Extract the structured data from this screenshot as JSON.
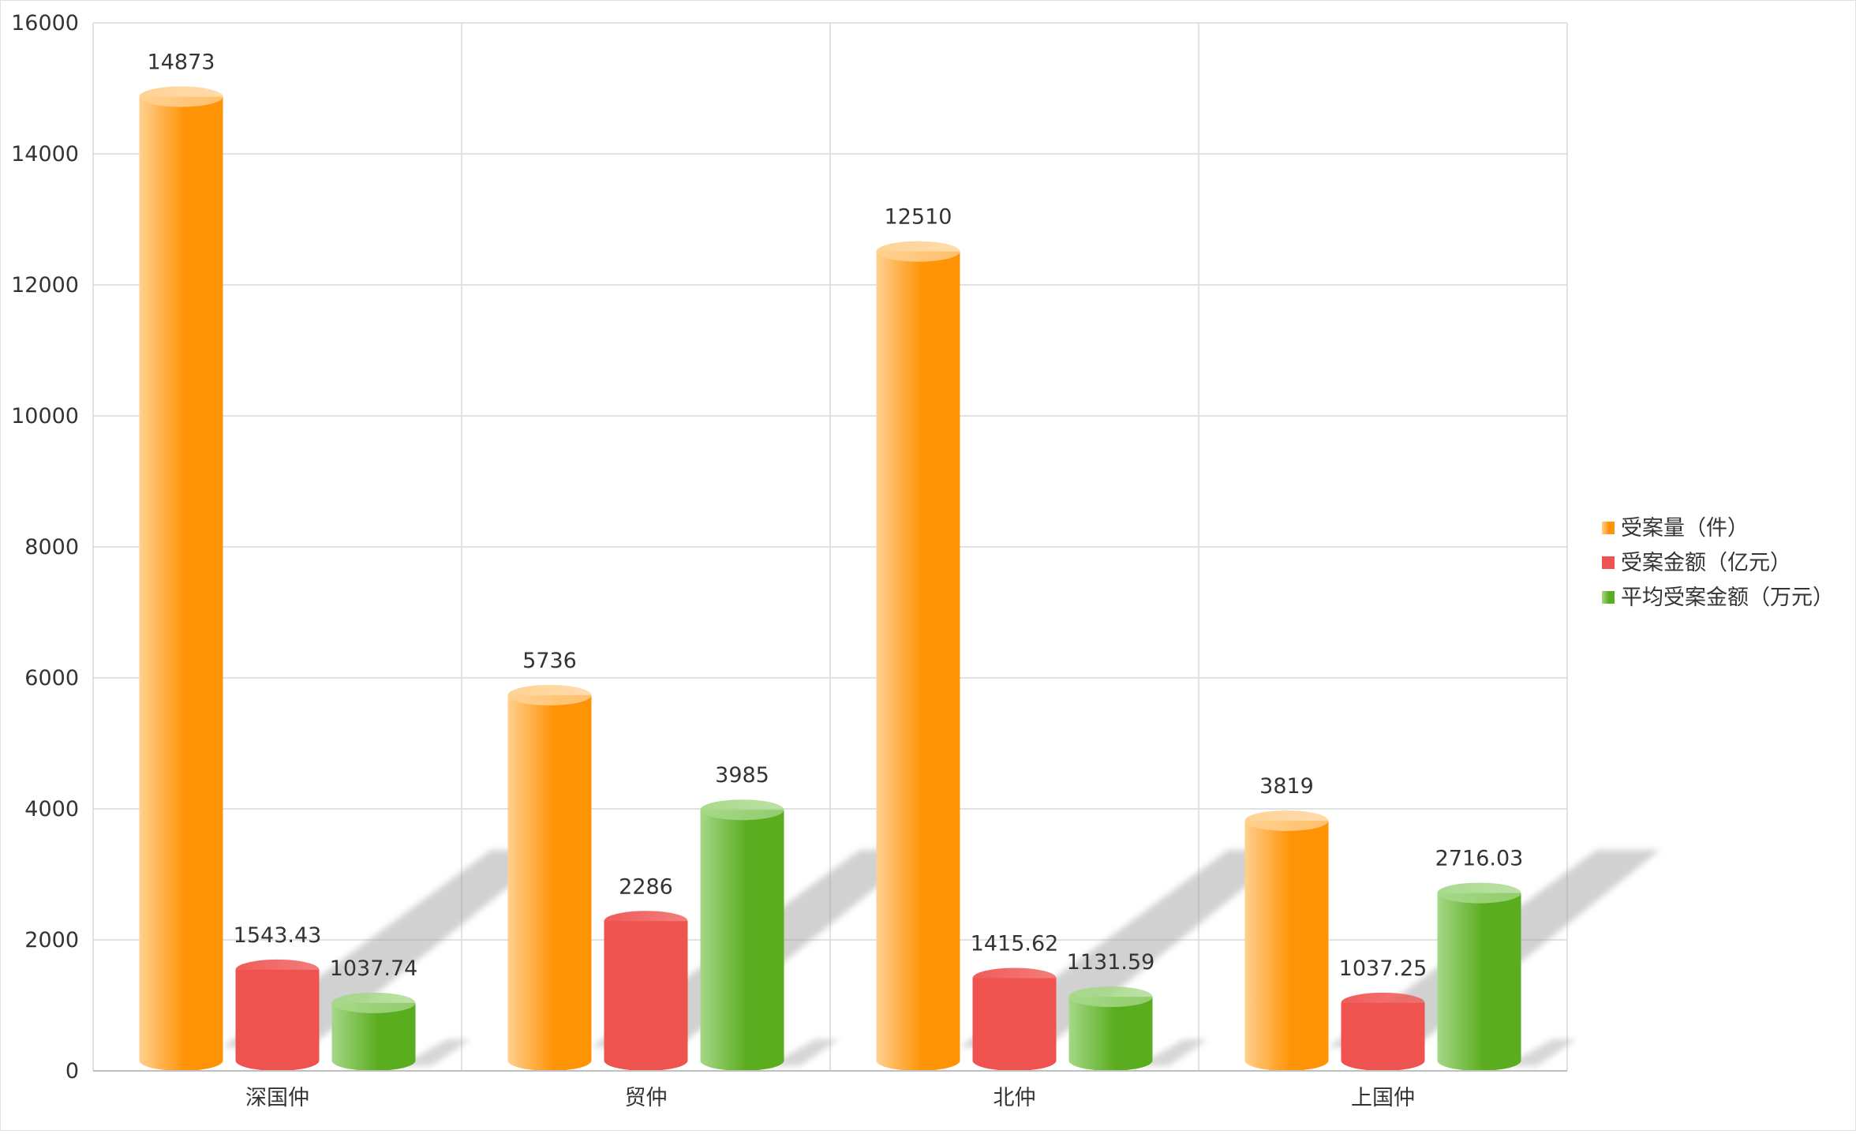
{
  "chart_data": {
    "type": "bar",
    "title": "",
    "xlabel": "",
    "ylabel": "",
    "ylim": [
      0,
      16000
    ],
    "yticks": [
      0,
      2000,
      4000,
      6000,
      8000,
      10000,
      12000,
      14000,
      16000
    ],
    "grid": true,
    "legend_position": "right",
    "categories": [
      "深国仲",
      "贸仲",
      "北仲",
      "上国仲"
    ],
    "series": [
      {
        "name": "受案量（件）",
        "values": [
          14873,
          5736,
          12510,
          3819
        ],
        "labels": [
          "14873",
          "5736",
          "12510",
          "3819"
        ],
        "color": "#FF9306",
        "color_light": "#FFD08F"
      },
      {
        "name": "受案金额（亿元）",
        "values": [
          1543.43,
          2286,
          1415.62,
          1037.25
        ],
        "labels": [
          "1543.43",
          "2286",
          "1415.62",
          "1037.25"
        ],
        "color": "#EF5350",
        "color_light": "#EF5350"
      },
      {
        "name": "平均受案金额（万元）",
        "values": [
          1037.74,
          3985,
          1131.59,
          2716.03
        ],
        "labels": [
          "1037.74",
          "3985",
          "1131.59",
          "2716.03"
        ],
        "color": "#5BAD20",
        "color_light": "#A5D887"
      }
    ]
  }
}
